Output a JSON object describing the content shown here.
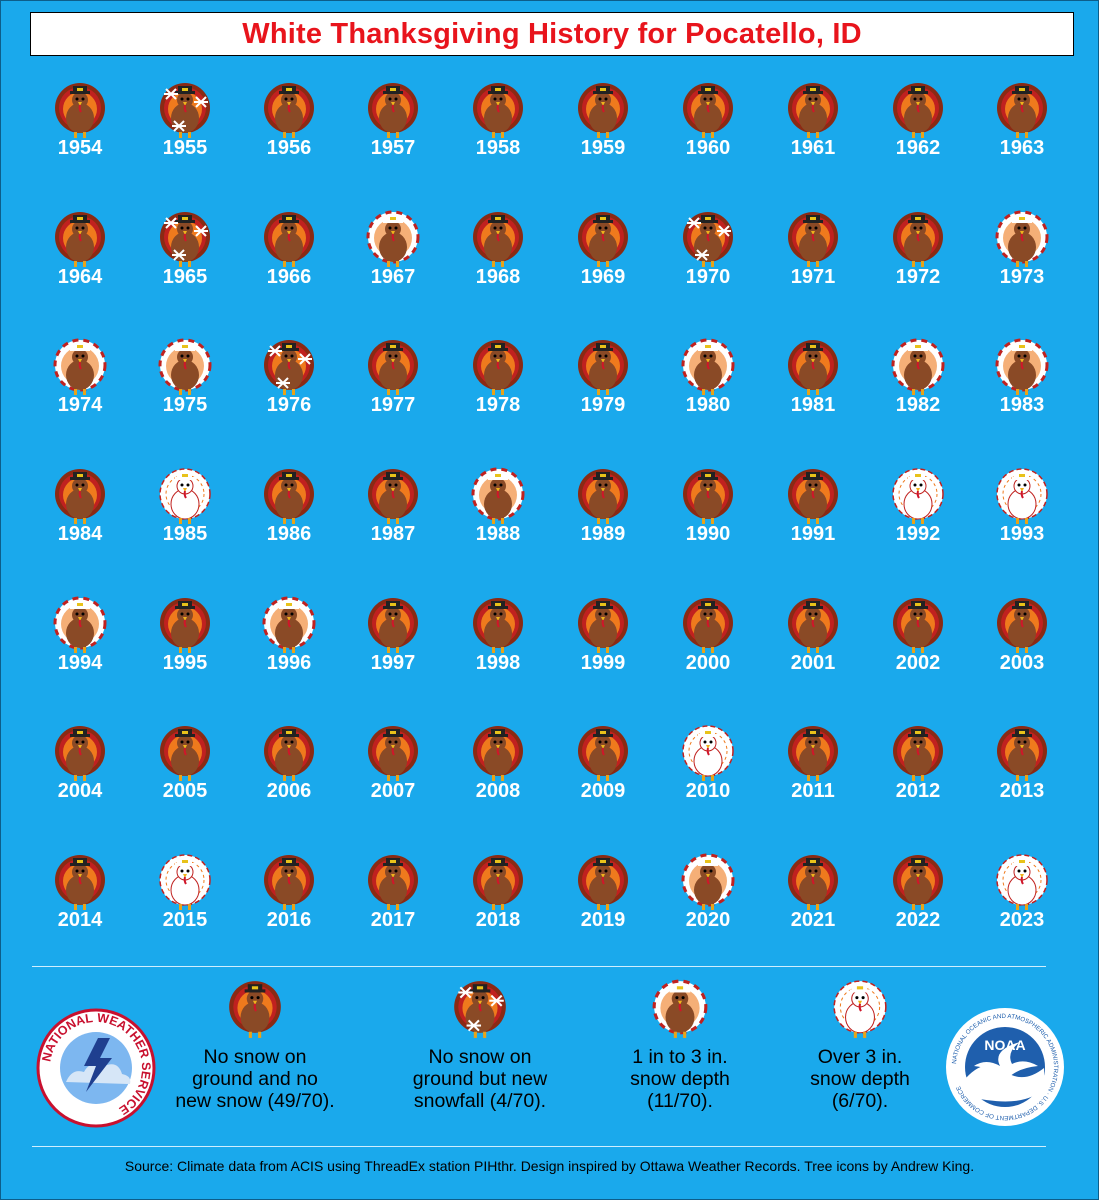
{
  "title": "White Thanksgiving History for Pocatello, ID",
  "chart_data": {
    "type": "table",
    "title": "White Thanksgiving History for Pocatello, ID",
    "categories": [
      {
        "key": "none",
        "label": "No snow on\nground and no\nnew snow (49/70).",
        "count": 49
      },
      {
        "key": "new",
        "label": "No snow on\nground but new\nsnowfall (4/70).",
        "count": 4
      },
      {
        "key": "light",
        "label": "1 in to 3 in.\nsnow depth\n(11/70).",
        "count": 11
      },
      {
        "key": "heavy",
        "label": "Over 3 in.\nsnow depth\n(6/70).",
        "count": 6
      }
    ],
    "years": [
      {
        "year": 1954,
        "category": "none"
      },
      {
        "year": 1955,
        "category": "new"
      },
      {
        "year": 1956,
        "category": "none"
      },
      {
        "year": 1957,
        "category": "none"
      },
      {
        "year": 1958,
        "category": "none"
      },
      {
        "year": 1959,
        "category": "none"
      },
      {
        "year": 1960,
        "category": "none"
      },
      {
        "year": 1961,
        "category": "none"
      },
      {
        "year": 1962,
        "category": "none"
      },
      {
        "year": 1963,
        "category": "none"
      },
      {
        "year": 1964,
        "category": "none"
      },
      {
        "year": 1965,
        "category": "new"
      },
      {
        "year": 1966,
        "category": "none"
      },
      {
        "year": 1967,
        "category": "light"
      },
      {
        "year": 1968,
        "category": "none"
      },
      {
        "year": 1969,
        "category": "none"
      },
      {
        "year": 1970,
        "category": "new"
      },
      {
        "year": 1971,
        "category": "none"
      },
      {
        "year": 1972,
        "category": "none"
      },
      {
        "year": 1973,
        "category": "light"
      },
      {
        "year": 1974,
        "category": "light"
      },
      {
        "year": 1975,
        "category": "light"
      },
      {
        "year": 1976,
        "category": "new"
      },
      {
        "year": 1977,
        "category": "none"
      },
      {
        "year": 1978,
        "category": "none"
      },
      {
        "year": 1979,
        "category": "none"
      },
      {
        "year": 1980,
        "category": "light"
      },
      {
        "year": 1981,
        "category": "none"
      },
      {
        "year": 1982,
        "category": "light"
      },
      {
        "year": 1983,
        "category": "light"
      },
      {
        "year": 1984,
        "category": "none"
      },
      {
        "year": 1985,
        "category": "heavy"
      },
      {
        "year": 1986,
        "category": "none"
      },
      {
        "year": 1987,
        "category": "none"
      },
      {
        "year": 1988,
        "category": "light"
      },
      {
        "year": 1989,
        "category": "none"
      },
      {
        "year": 1990,
        "category": "none"
      },
      {
        "year": 1991,
        "category": "none"
      },
      {
        "year": 1992,
        "category": "heavy"
      },
      {
        "year": 1993,
        "category": "heavy"
      },
      {
        "year": 1994,
        "category": "light"
      },
      {
        "year": 1995,
        "category": "none"
      },
      {
        "year": 1996,
        "category": "light"
      },
      {
        "year": 1997,
        "category": "none"
      },
      {
        "year": 1998,
        "category": "none"
      },
      {
        "year": 1999,
        "category": "none"
      },
      {
        "year": 2000,
        "category": "none"
      },
      {
        "year": 2001,
        "category": "none"
      },
      {
        "year": 2002,
        "category": "none"
      },
      {
        "year": 2003,
        "category": "none"
      },
      {
        "year": 2004,
        "category": "none"
      },
      {
        "year": 2005,
        "category": "none"
      },
      {
        "year": 2006,
        "category": "none"
      },
      {
        "year": 2007,
        "category": "none"
      },
      {
        "year": 2008,
        "category": "none"
      },
      {
        "year": 2009,
        "category": "none"
      },
      {
        "year": 2010,
        "category": "heavy"
      },
      {
        "year": 2011,
        "category": "none"
      },
      {
        "year": 2012,
        "category": "none"
      },
      {
        "year": 2013,
        "category": "none"
      },
      {
        "year": 2014,
        "category": "none"
      },
      {
        "year": 2015,
        "category": "heavy"
      },
      {
        "year": 2016,
        "category": "none"
      },
      {
        "year": 2017,
        "category": "none"
      },
      {
        "year": 2018,
        "category": "none"
      },
      {
        "year": 2019,
        "category": "none"
      },
      {
        "year": 2020,
        "category": "light"
      },
      {
        "year": 2021,
        "category": "none"
      },
      {
        "year": 2022,
        "category": "none"
      },
      {
        "year": 2023,
        "category": "heavy"
      }
    ]
  },
  "logos": {
    "nws_text": "NATIONAL WEATHER SERVICE",
    "noaa_text": "NOAA",
    "noaa_ring_text": "NATIONAL OCEANIC AND ATMOSPHERIC ADMINISTRATION · U.S. DEPARTMENT OF COMMERCE"
  },
  "source": "Source: Climate data from ACIS using ThreadEx station PIHthr. Design inspired by Ottawa Weather Records. Tree icons by Andrew King.",
  "colors": {
    "background": "#1aa9ec",
    "title": "#e8141c",
    "turkey_body": "#8a4a26",
    "feather_red": "#c0211f",
    "feather_orange": "#ef7a1d"
  }
}
